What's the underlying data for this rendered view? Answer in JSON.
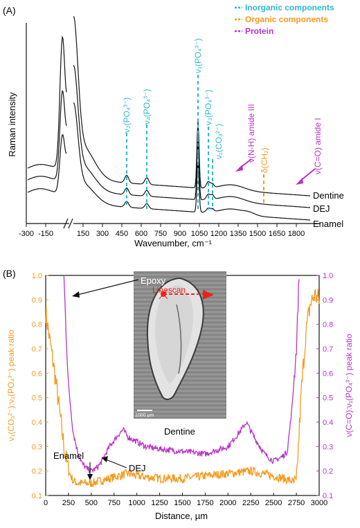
{
  "colors": {
    "inorganic": "#2bb8d1",
    "organic": "#f59a1e",
    "protein": "#b832c8",
    "black": "#111111",
    "red": "#e8231c"
  },
  "legend": [
    {
      "label": "Inorganic components",
      "color": "#2bb8d1"
    },
    {
      "label": "Organic components",
      "color": "#f59a1e"
    },
    {
      "label": "Protein",
      "color": "#b832c8"
    }
  ],
  "panel_a": {
    "panel_label": "(A)",
    "ylabel": "Raman intensity",
    "xlabel": "Wavenumber, cm⁻¹",
    "x_ticks": [
      "-300",
      "-150",
      "150",
      "300",
      "450",
      "600",
      "750",
      "900",
      "1050",
      "1200",
      "1350",
      "1500",
      "1650",
      "1800"
    ],
    "spectra": [
      "Dentine",
      "DEJ",
      "Enamel"
    ],
    "peaks": [
      {
        "label": "ν₂(PO₄³⁻)",
        "x": 440,
        "group": "inorganic"
      },
      {
        "label": "ν₄(PO₄³⁻)",
        "x": 590,
        "group": "inorganic"
      },
      {
        "label": "ν₁(PO₄³⁻)",
        "x": 960,
        "group": "inorganic"
      },
      {
        "label": "ν₃(PO₄³⁻)",
        "x": 1045,
        "group": "inorganic"
      },
      {
        "label": "ν₁(CO₃²⁻)",
        "x": 1070,
        "group": "inorganic"
      },
      {
        "label": "δ(CH₂)",
        "x": 1450,
        "group": "organic"
      },
      {
        "label": "ν(N-H) amide III",
        "x": 1250,
        "group": "protein"
      },
      {
        "label": "ν(C=O) amide I",
        "x": 1660,
        "group": "protein"
      }
    ]
  },
  "panel_b": {
    "panel_label": "(B)",
    "xlabel": "Distance, µm",
    "ylabel_left": "ν₁(CO₃²⁻):ν₁(PO₄³⁻) peak ratio",
    "ylabel_right": "ν(C=O):ν₁(PO₄³⁻) peak ratio",
    "annotations": [
      "Epoxy",
      "Enamel",
      "DEJ",
      "Dentine"
    ],
    "inset": {
      "linescan_label": "Linescan",
      "scale_bar": "1000 µm"
    }
  },
  "chart_data": [
    {
      "type": "line",
      "title": "",
      "xlabel": "Wavenumber, cm⁻¹",
      "ylabel": "Raman intensity",
      "xlim": [
        -300,
        1800
      ],
      "axis_break": "between -150 and 150 (laser line region)",
      "series": [
        {
          "name": "Dentine",
          "x": [
            -300,
            -150,
            0,
            150,
            300,
            400,
            440,
            500,
            560,
            590,
            620,
            700,
            800,
            900,
            940,
            960,
            980,
            1000,
            1070,
            1150,
            1250,
            1350,
            1450,
            1550,
            1650,
            1800
          ],
          "y": [
            0.42,
            0.55,
            0.95,
            0.62,
            0.47,
            0.41,
            0.5,
            0.41,
            0.41,
            0.48,
            0.4,
            0.4,
            0.39,
            0.38,
            0.41,
            0.63,
            0.41,
            0.36,
            0.34,
            0.32,
            0.34,
            0.33,
            0.3,
            0.27,
            0.25,
            0.22
          ]
        },
        {
          "name": "DEJ",
          "x": [
            -300,
            -150,
            0,
            150,
            300,
            400,
            440,
            500,
            560,
            590,
            620,
            700,
            800,
            900,
            940,
            960,
            980,
            1000,
            1070,
            1150,
            1250,
            1350,
            1450,
            1550,
            1650,
            1800
          ],
          "y": [
            0.28,
            0.38,
            0.72,
            0.38,
            0.3,
            0.27,
            0.34,
            0.27,
            0.27,
            0.32,
            0.26,
            0.26,
            0.26,
            0.25,
            0.27,
            0.6,
            0.27,
            0.23,
            0.22,
            0.19,
            0.2,
            0.19,
            0.17,
            0.15,
            0.14,
            0.12
          ]
        },
        {
          "name": "Enamel",
          "x": [
            -300,
            -150,
            0,
            150,
            300,
            400,
            440,
            500,
            560,
            590,
            620,
            700,
            800,
            900,
            940,
            960,
            980,
            1000,
            1070,
            1150,
            1250,
            1350,
            1450,
            1550,
            1650,
            1800
          ],
          "y": [
            0.18,
            0.26,
            0.52,
            0.22,
            0.16,
            0.14,
            0.2,
            0.14,
            0.14,
            0.18,
            0.13,
            0.13,
            0.12,
            0.12,
            0.14,
            0.58,
            0.13,
            0.1,
            0.09,
            0.08,
            0.09,
            0.08,
            0.07,
            0.06,
            0.05,
            0.04
          ]
        }
      ]
    },
    {
      "type": "line",
      "title": "",
      "xlabel": "Distance, µm",
      "ylabel": "ν₁(CO₃²⁻):ν₁(PO₄³⁻) peak ratio",
      "y2label": "ν(C=O):ν₁(PO₄³⁻) peak ratio",
      "xlim": [
        0,
        3000
      ],
      "ylim": [
        0.1,
        1.0
      ],
      "x_ticks": [
        0,
        250,
        500,
        750,
        1000,
        1250,
        1500,
        1750,
        2000,
        2250,
        2500,
        2750,
        3000
      ],
      "y_ticks": [
        0.1,
        0.2,
        0.3,
        0.4,
        0.5,
        0.6,
        0.7,
        0.8,
        0.9,
        1.0
      ],
      "series": [
        {
          "name": "ν₁(CO₃²⁻):ν₁(PO₄³⁻)",
          "axis": "left",
          "x": [
            0,
            50,
            100,
            150,
            200,
            250,
            300,
            350,
            400,
            500,
            600,
            700,
            800,
            900,
            1000,
            1250,
            1500,
            1750,
            2000,
            2250,
            2500,
            2600,
            2700,
            2750,
            2800,
            2850,
            2900,
            2950,
            3000
          ],
          "y": [
            0.85,
            0.72,
            0.6,
            0.45,
            0.3,
            0.2,
            0.16,
            0.15,
            0.15,
            0.15,
            0.16,
            0.17,
            0.18,
            0.19,
            0.18,
            0.17,
            0.17,
            0.18,
            0.19,
            0.2,
            0.18,
            0.17,
            0.16,
            0.14,
            0.5,
            0.75,
            0.88,
            0.92,
            0.9
          ]
        },
        {
          "name": "ν(C=O):ν₁(PO₄³⁻)",
          "axis": "right",
          "x": [
            200,
            220,
            250,
            300,
            350,
            400,
            450,
            500,
            550,
            600,
            700,
            800,
            850,
            900,
            1000,
            1100,
            1250,
            1500,
            1750,
            2000,
            2150,
            2200,
            2300,
            2400,
            2500,
            2600,
            2650,
            2700,
            2750,
            2780
          ],
          "y": [
            1.0,
            0.8,
            0.55,
            0.36,
            0.28,
            0.23,
            0.21,
            0.2,
            0.21,
            0.23,
            0.3,
            0.35,
            0.37,
            0.34,
            0.32,
            0.3,
            0.29,
            0.28,
            0.27,
            0.3,
            0.37,
            0.4,
            0.33,
            0.27,
            0.24,
            0.26,
            0.28,
            0.45,
            0.7,
            1.0
          ]
        }
      ]
    }
  ]
}
